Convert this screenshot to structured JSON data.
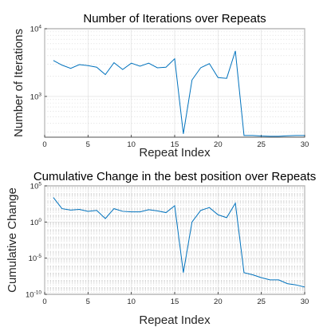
{
  "chart_data": [
    {
      "type": "line",
      "title": "Number of Iterations over Repeats",
      "xlabel": "Repeat Index",
      "ylabel": "Number of Iterations",
      "yscale": "log",
      "xlim": [
        0,
        30
      ],
      "ylim": [
        250,
        10000
      ],
      "grid": true,
      "minor_grid": true,
      "xticks": [
        0,
        5,
        10,
        15,
        20,
        25,
        30
      ],
      "xtick_labels": [
        "0",
        "5",
        "10",
        "15",
        "20",
        "25",
        "30"
      ],
      "yticks": [
        1000,
        10000
      ],
      "ytick_labels": [
        {
          "base": "10",
          "exp": "3"
        },
        {
          "base": "10",
          "exp": "4"
        }
      ],
      "series_color": "#0072bd",
      "x": [
        1,
        2,
        3,
        4,
        5,
        6,
        7,
        8,
        9,
        10,
        11,
        12,
        13,
        14,
        15,
        16,
        17,
        18,
        19,
        20,
        21,
        22,
        23,
        24,
        25,
        26,
        27,
        28,
        29,
        30
      ],
      "y": [
        3400,
        2900,
        2600,
        2950,
        2850,
        2700,
        2100,
        3150,
        2500,
        3100,
        2800,
        3100,
        2650,
        2700,
        3600,
        280,
        1750,
        2650,
        3050,
        1900,
        1850,
        4700,
        265,
        265,
        260,
        258,
        258,
        262,
        265,
        265
      ]
    },
    {
      "type": "line",
      "title": "Cumulative Change in the best position over Repeats",
      "xlabel": "Repeat Index",
      "ylabel": "Cumulative Change",
      "yscale": "log",
      "xlim": [
        0,
        30
      ],
      "ylim": [
        1e-10,
        100000
      ],
      "grid": true,
      "minor_grid": true,
      "xticks": [
        0,
        5,
        10,
        15,
        20,
        25,
        30
      ],
      "xtick_labels": [
        "0",
        "5",
        "10",
        "15",
        "20",
        "25",
        "30"
      ],
      "yticks": [
        1e-10,
        1e-05,
        1,
        100000
      ],
      "ytick_labels": [
        {
          "base": "10",
          "exp": "-10"
        },
        {
          "base": "10",
          "exp": "-5"
        },
        {
          "base": "10",
          "exp": "0"
        },
        {
          "base": "10",
          "exp": "5"
        }
      ],
      "series_color": "#0072bd",
      "x": [
        1,
        2,
        3,
        4,
        5,
        6,
        7,
        8,
        9,
        10,
        11,
        12,
        13,
        14,
        15,
        16,
        17,
        18,
        19,
        20,
        21,
        22,
        23,
        24,
        25,
        26,
        27,
        28,
        29,
        30
      ],
      "y": [
        2500,
        70,
        45,
        55,
        30,
        40,
        3,
        70,
        30,
        25,
        25,
        50,
        35,
        20,
        180,
        1e-07,
        1,
        40,
        100,
        10,
        4,
        400,
        1e-07,
        5e-08,
        2e-08,
        1e-08,
        1e-08,
        3e-09,
        2e-09,
        1e-09
      ]
    }
  ]
}
